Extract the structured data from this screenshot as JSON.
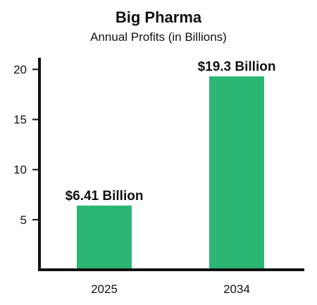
{
  "chart_data": {
    "type": "bar",
    "title": "Big Pharma",
    "subtitle": "Annual Profits (in Billions)",
    "categories": [
      "2025",
      "2034"
    ],
    "values": [
      6.41,
      19.3
    ],
    "data_labels": [
      "$6.41 Billion",
      "$19.3 Billion"
    ],
    "xlabel": "",
    "ylabel": "",
    "ylim": [
      0,
      22
    ],
    "yticks": [
      5,
      10,
      15,
      20
    ],
    "grid": false,
    "colors": {
      "bar": "#2bb673",
      "axis": "#111111"
    }
  }
}
